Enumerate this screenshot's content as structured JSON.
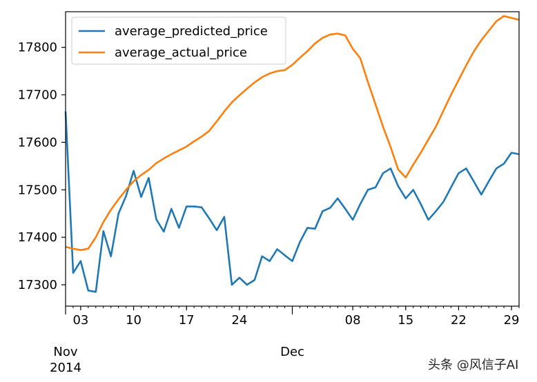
{
  "chart_data": {
    "type": "line",
    "title": "",
    "xlabel": "",
    "ylabel": "",
    "x_range": [
      1,
      61
    ],
    "ylim": [
      17255,
      17875
    ],
    "y_ticks": [
      17300,
      17400,
      17500,
      17600,
      17700,
      17800
    ],
    "x_ticks": [
      {
        "day": 3,
        "label": "03"
      },
      {
        "day": 10,
        "label": "10"
      },
      {
        "day": 17,
        "label": "17"
      },
      {
        "day": 24,
        "label": "24"
      },
      {
        "day": 39,
        "label": "08"
      },
      {
        "day": 46,
        "label": "15"
      },
      {
        "day": 53,
        "label": "22"
      },
      {
        "day": 60,
        "label": "29"
      }
    ],
    "month_labels": [
      {
        "day": 1,
        "label": "Nov",
        "sublabel": "2014"
      },
      {
        "day": 31,
        "label": "Dec",
        "sublabel": ""
      }
    ],
    "legend_position": "upper-left",
    "series": [
      {
        "name": "average_predicted_price",
        "color": "#1f77b4",
        "x": [
          1,
          2,
          3,
          4,
          5,
          6,
          7,
          8,
          9,
          10,
          11,
          12,
          13,
          14,
          15,
          16,
          17,
          18,
          19,
          20,
          21,
          22,
          23,
          24,
          25,
          26,
          27,
          28,
          29,
          30,
          31,
          32,
          33,
          34,
          35,
          36,
          37,
          38,
          39,
          40,
          41,
          42,
          43,
          44,
          45,
          46,
          47,
          48,
          49,
          50,
          51,
          52,
          53,
          54,
          55,
          56,
          57,
          58,
          59,
          60,
          61
        ],
        "values": [
          17665,
          17325,
          17350,
          17288,
          17285,
          17413,
          17360,
          17450,
          17487,
          17540,
          17485,
          17525,
          17438,
          17412,
          17460,
          17420,
          17465,
          17465,
          17463,
          17440,
          17415,
          17443,
          17300,
          17315,
          17300,
          17310,
          17360,
          17350,
          17375,
          17362,
          17350,
          17390,
          17420,
          17418,
          17455,
          17462,
          17482,
          17460,
          17437,
          17470,
          17500,
          17505,
          17535,
          17545,
          17508,
          17482,
          17500,
          17470,
          17437,
          17455,
          17475,
          17505,
          17535,
          17545,
          17518,
          17490,
          17518,
          17545,
          17555,
          17578,
          17575
        ]
      },
      {
        "name": "average_actual_price",
        "color": "#ff7f0e",
        "x": [
          1,
          2,
          3,
          4,
          5,
          6,
          7,
          8,
          9,
          10,
          11,
          12,
          13,
          14,
          15,
          16,
          17,
          18,
          19,
          20,
          21,
          22,
          23,
          24,
          25,
          26,
          27,
          28,
          29,
          30,
          31,
          32,
          33,
          34,
          35,
          36,
          37,
          38,
          39,
          40,
          41,
          42,
          43,
          44,
          45,
          46,
          47,
          48,
          49,
          50,
          51,
          52,
          53,
          54,
          55,
          56,
          57,
          58,
          59,
          60,
          61
        ],
        "values": [
          17380,
          17376,
          17373,
          17376,
          17400,
          17432,
          17458,
          17480,
          17500,
          17518,
          17531,
          17542,
          17556,
          17566,
          17575,
          17583,
          17591,
          17602,
          17612,
          17624,
          17644,
          17665,
          17684,
          17699,
          17713,
          17726,
          17737,
          17745,
          17750,
          17752,
          17763,
          17778,
          17792,
          17808,
          17820,
          17827,
          17829,
          17825,
          17797,
          17777,
          17727,
          17680,
          17633,
          17590,
          17543,
          17526,
          17553,
          17578,
          17606,
          17633,
          17667,
          17700,
          17731,
          17762,
          17791,
          17815,
          17835,
          17855,
          17866,
          17862,
          17858
        ]
      }
    ]
  },
  "watermark": "头条 @风信子AI"
}
